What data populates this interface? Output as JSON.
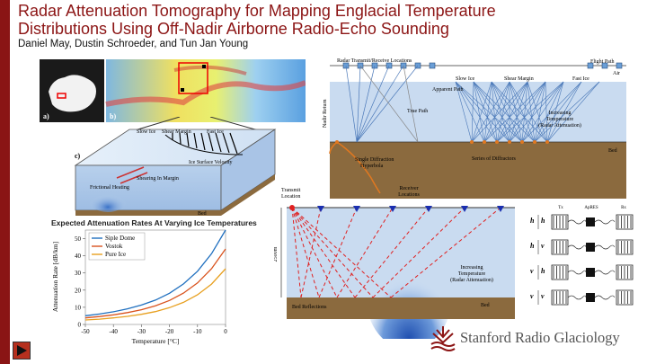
{
  "slide": {
    "title_line1": "Radar Attenuation Tomography for Mapping Englacial Temperature",
    "title_line2": "Distributions Using Off-Nadir Airborne Radio-Echo Sounding",
    "authors": "Daniel May, Dustin Schroeder, and Tun Jan Young",
    "logo_text": "Stanford Radio Glaciology",
    "colors": {
      "title": "#8c1515",
      "sidebar": "#8a1515"
    }
  },
  "map_panel": {
    "label_a": "a)",
    "label_b": "b)",
    "label_c": "c)"
  },
  "flowline_diagram": {
    "labels": [
      "Slow Ice",
      "Shear Margin",
      "Fast Ice",
      "Ice Surface Velocity",
      "Shearing In Margin",
      "Frictional Heating",
      "Bed"
    ]
  },
  "flight_diagram": {
    "top_label": "Radar Transmit/Receive Locations",
    "flight_path": "Flight Path",
    "air": "Air",
    "nadir_return": "Nadir Return",
    "true_path": "True Path",
    "apparent_path": "Apparent Path",
    "slow_ice": "Slow Ice",
    "shear_margin": "Shear Margin",
    "fast_ice": "Fast Ice",
    "increasing_temp": [
      "Increasing",
      "Temperature",
      "(Radar Attenuation)"
    ],
    "single_diffraction": [
      "Single Diffraction",
      "Hyperbola"
    ],
    "series_diffractors": "Series of Diffractors",
    "bed": "Bed"
  },
  "ground_diagram": {
    "transmit": [
      "Transmit",
      "Location"
    ],
    "receiver": [
      "Receiver",
      "Locations"
    ],
    "depth": "2500m",
    "increasing_temp": [
      "Increasing",
      "Temperature",
      "(Radar Attenuation)"
    ],
    "bed_reflections": "Bed Reflections",
    "bed": "Bed"
  },
  "polarization": {
    "rows": [
      {
        "a": "h",
        "b": "h"
      },
      {
        "a": "h",
        "b": "v"
      },
      {
        "a": "v",
        "b": "h"
      },
      {
        "a": "v",
        "b": "v"
      }
    ],
    "tx": "Tx",
    "apres": "ApRES",
    "rx": "Rx"
  },
  "chart_data": {
    "type": "line",
    "title": "Expected Attenuation Rates At Varying Ice Temperatures",
    "xlabel": "Temperature [°C]",
    "ylabel": "Attenuation Rate [dB/km]",
    "xlim": [
      -50,
      0
    ],
    "ylim": [
      0,
      55
    ],
    "xticks": [
      -50,
      -40,
      -30,
      -20,
      -10,
      0
    ],
    "yticks": [
      0,
      10,
      20,
      30,
      40,
      50
    ],
    "legend_position": "top-left",
    "x": [
      -50,
      -45,
      -40,
      -35,
      -30,
      -25,
      -20,
      -15,
      -10,
      -5,
      0
    ],
    "series": [
      {
        "name": "Siple Dome",
        "color": "#1f6fbf",
        "values": [
          5.1,
          6.1,
          7.4,
          9.1,
          11.3,
          14.2,
          18.2,
          23.6,
          31.0,
          41.2,
          55.0
        ]
      },
      {
        "name": "Vostok",
        "color": "#d9531e",
        "values": [
          3.8,
          4.6,
          5.6,
          6.9,
          8.6,
          10.9,
          14.0,
          18.3,
          24.2,
          32.5,
          44.0
        ]
      },
      {
        "name": "Pure Ice",
        "color": "#e8a020",
        "values": [
          2.6,
          3.1,
          3.8,
          4.7,
          5.9,
          7.5,
          9.8,
          12.9,
          17.3,
          23.5,
          32.5
        ]
      }
    ]
  }
}
